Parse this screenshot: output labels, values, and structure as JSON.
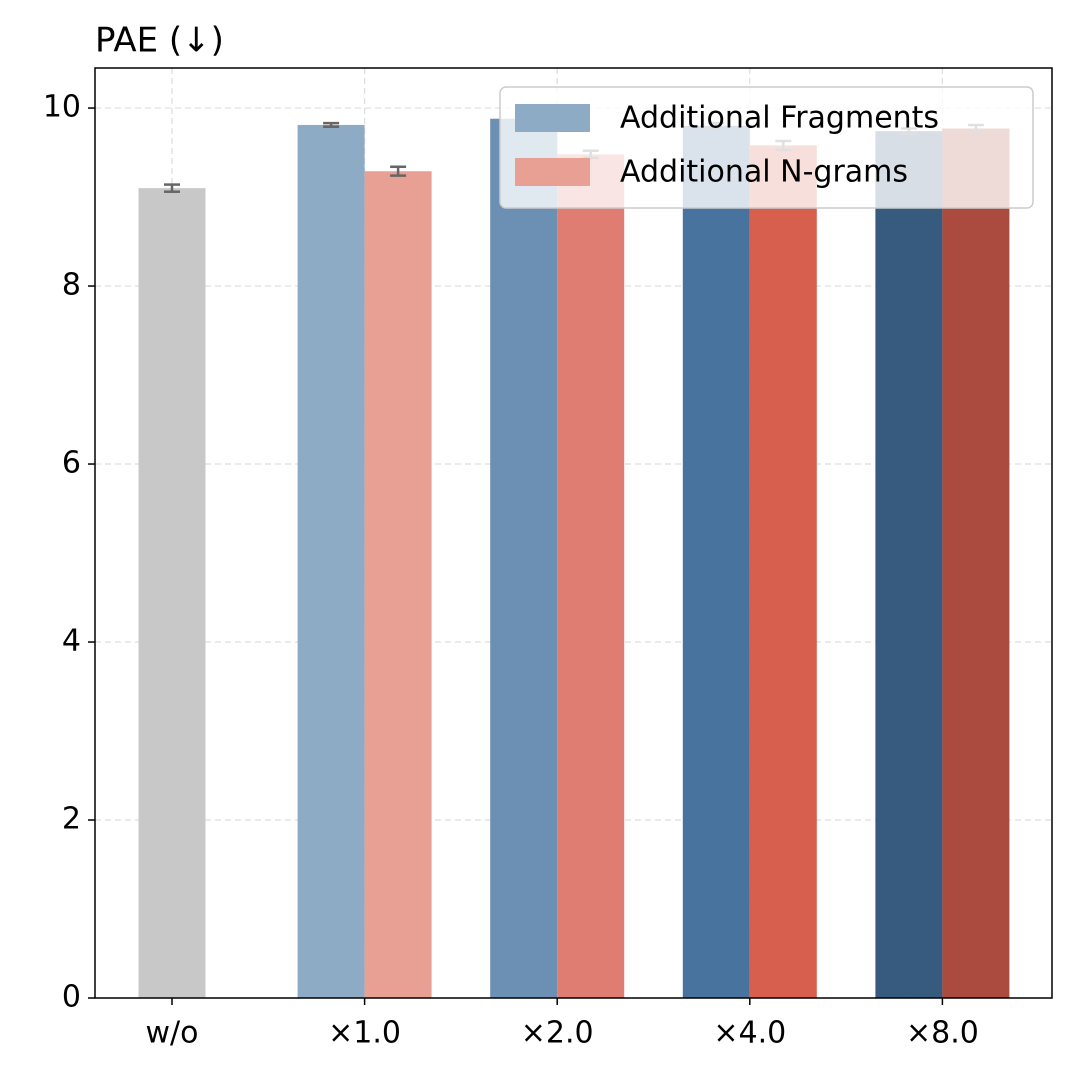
{
  "chart_data": {
    "type": "bar",
    "title": "PAE (↓)",
    "categories": [
      "w/o",
      "×1.0",
      "×2.0",
      "×4.0",
      "×8.0"
    ],
    "baseline": {
      "value": 9.1,
      "error": 0.04,
      "color": "#c8c8c8"
    },
    "series": [
      {
        "name": "Additional Fragments",
        "colors": [
          null,
          "#8eabc6",
          "#6b90b4",
          "#48739e",
          "#375b7e"
        ],
        "values": [
          null,
          9.81,
          9.88,
          9.8,
          9.74
        ],
        "errors": [
          null,
          0.02,
          0.03,
          0.03,
          0.03
        ]
      },
      {
        "name": "Additional N-grams",
        "colors": [
          null,
          "#e8a095",
          "#e07d72",
          "#d65f4e",
          "#ab4b3f"
        ],
        "values": [
          null,
          9.29,
          9.48,
          9.58,
          9.77
        ],
        "errors": [
          null,
          0.05,
          0.04,
          0.05,
          0.04
        ]
      }
    ],
    "error_color": "#666666",
    "ylim": [
      0,
      10.45
    ],
    "yticks": [
      0,
      2,
      4,
      6,
      8,
      10
    ],
    "grid": true,
    "legend": "upper right"
  }
}
